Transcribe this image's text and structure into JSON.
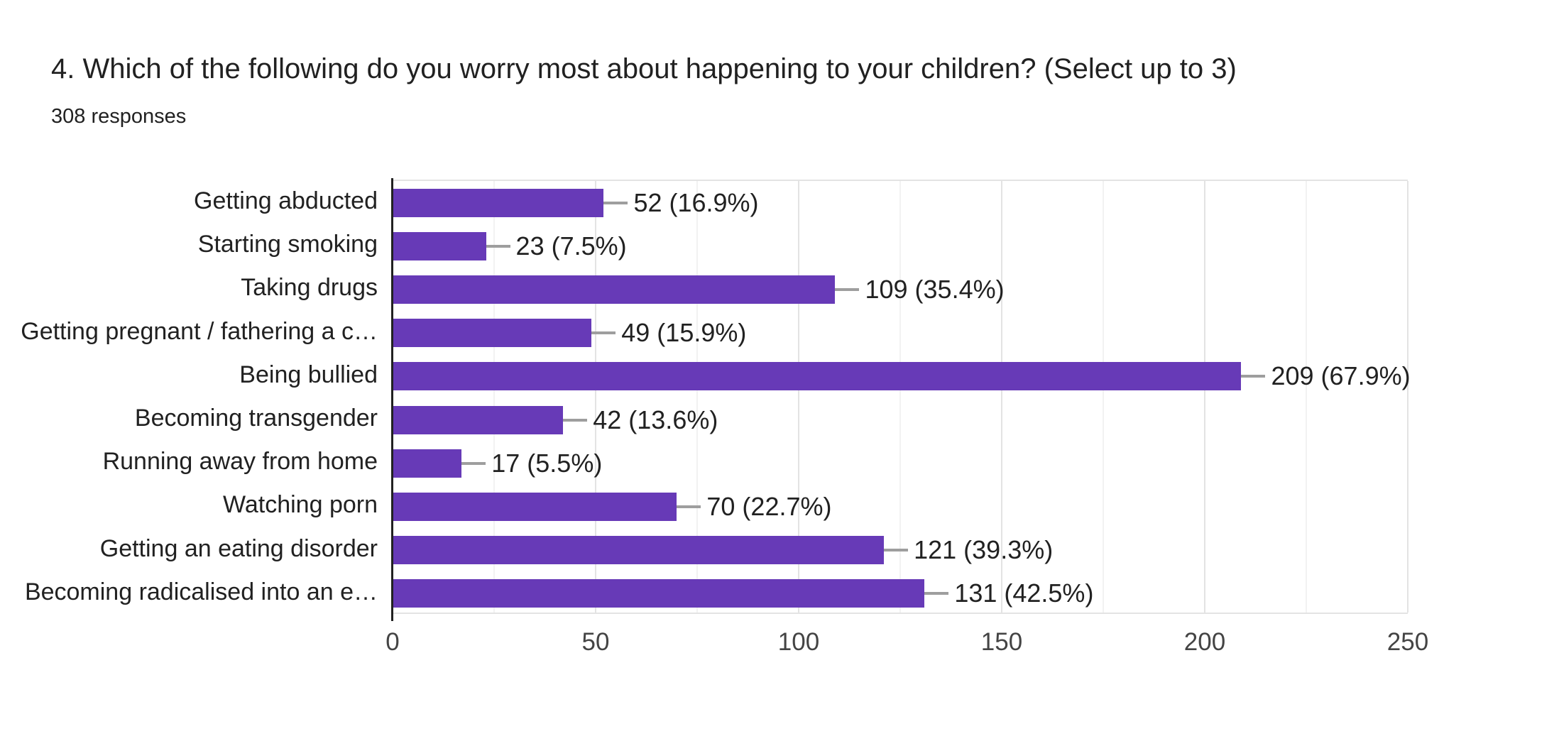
{
  "header": {
    "title": "4. Which of the following do you worry most about happening to your children? (Select up to 3)",
    "responses": "308 responses"
  },
  "colors": {
    "bar": "#673ab7",
    "axis_line": "#212121",
    "grid_major": "#e3e3e3",
    "grid_minor": "#f2f2f2",
    "connector": "#9e9e9e",
    "title_text": "#212121",
    "label_text": "#212121",
    "tick_text": "#444444",
    "background": "#ffffff"
  },
  "chart_data": {
    "type": "bar",
    "orientation": "horizontal",
    "title": "4. Which of the following do you worry most about happening to your children? (Select up to 3)",
    "subtitle": "308 responses",
    "categories": [
      "Getting abducted",
      "Starting smoking",
      "Taking drugs",
      "Getting pregnant / fathering a c…",
      "Being bullied",
      "Becoming transgender",
      "Running away from home",
      "Watching porn",
      "Getting an eating disorder",
      "Becoming radicalised into an e…"
    ],
    "values": [
      52,
      23,
      109,
      49,
      209,
      42,
      17,
      70,
      121,
      131
    ],
    "percentages": [
      16.9,
      7.5,
      35.4,
      15.9,
      67.9,
      13.6,
      5.5,
      22.7,
      39.3,
      42.5
    ],
    "value_labels": [
      "52 (16.9%)",
      "23 (7.5%)",
      "109 (35.4%)",
      "49 (15.9%)",
      "209 (67.9%)",
      "42 (13.6%)",
      "17 (5.5%)",
      "70 (22.7%)",
      "121 (39.3%)",
      "131 (42.5%)"
    ],
    "x_ticks": [
      0,
      50,
      100,
      150,
      200,
      250
    ],
    "xlim": [
      0,
      250
    ],
    "grid": true,
    "minor_grid_step": 25,
    "legend": false,
    "bar_color": "#673ab7"
  }
}
